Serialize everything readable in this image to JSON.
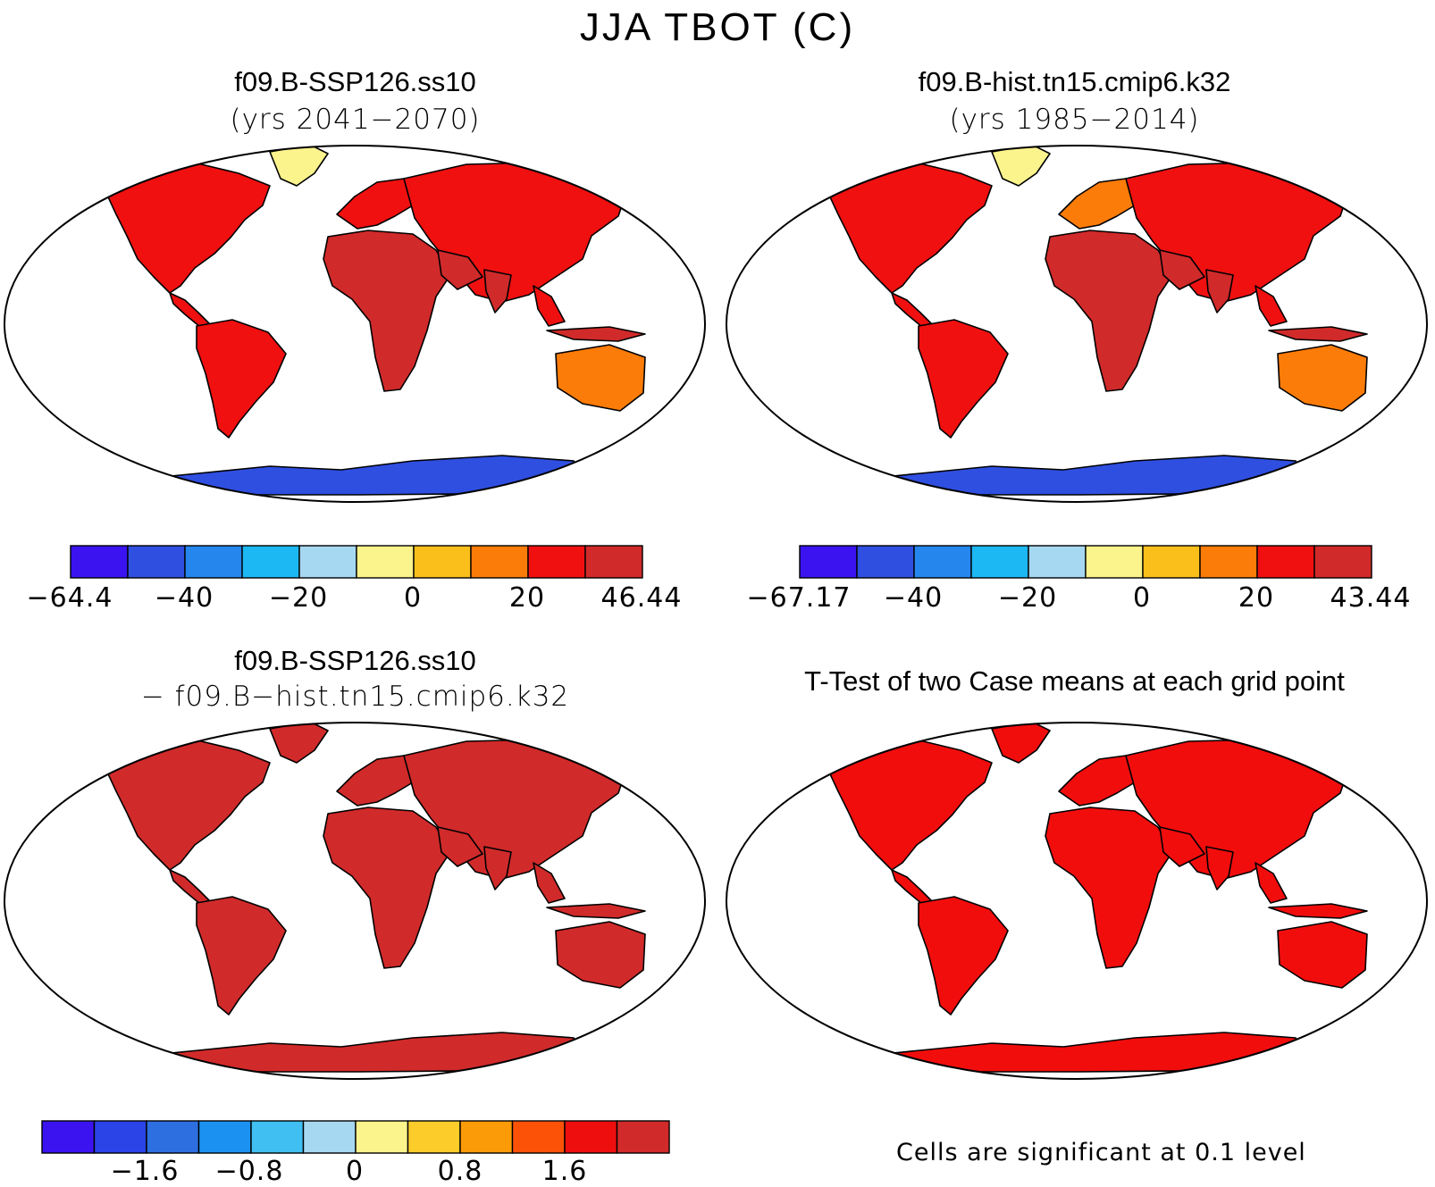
{
  "title": "JJA TBOT (C)",
  "panels": {
    "top_left": {
      "case": "f09.B-SSP126.ss10",
      "period": "(yrs 2041−2070)",
      "colorbar": {
        "colors": [
          "#3a13f0",
          "#2f4fe0",
          "#2586ee",
          "#1cb8f3",
          "#a6d8f2",
          "#fbf38c",
          "#fbbf1b",
          "#fb7c08",
          "#f01010",
          "#d12a2a"
        ],
        "tick_labels": [
          "−64.4",
          "−40",
          "−20",
          "0",
          "20",
          "46.44"
        ]
      }
    },
    "top_right": {
      "case": "f09.B-hist.tn15.cmip6.k32",
      "period": "(yrs 1985−2014)",
      "colorbar": {
        "colors": [
          "#3a13f0",
          "#2f4fe0",
          "#2586ee",
          "#1cb8f3",
          "#a6d8f2",
          "#fbf38c",
          "#fbbf1b",
          "#fb7c08",
          "#f01010",
          "#d12a2a"
        ],
        "tick_labels": [
          "−67.17",
          "−40",
          "−20",
          "0",
          "20",
          "43.44"
        ]
      }
    },
    "bottom_left": {
      "case": "f09.B-SSP126.ss10",
      "period": "− f09.B−hist.tn15.cmip6.k32",
      "colorbar": {
        "colors": [
          "#3a13f0",
          "#2a44e8",
          "#2d6fe0",
          "#1b92f2",
          "#40bff2",
          "#a6d8f2",
          "#fbf38c",
          "#fbcc2a",
          "#fb9b08",
          "#fb5208",
          "#ee0e0e",
          "#d12a2a"
        ],
        "tick_labels": [
          "−1.6",
          "−0.8",
          "0",
          "0.8",
          "1.6"
        ]
      }
    },
    "bottom_right": {
      "title": "T-Test of two Case means at each grid point",
      "note": "Cells are significant at 0.1 level"
    }
  },
  "map_colors": {
    "ocean": "#ffffff",
    "land_hot": "#d12a2a",
    "land_warm": "#f01010",
    "land_mild": "#fb7c08",
    "land_cool": "#fbbf1b",
    "greenland": "#fbf38c",
    "antarctica": "#2f4fe0",
    "ttest": "#f20d0d"
  }
}
